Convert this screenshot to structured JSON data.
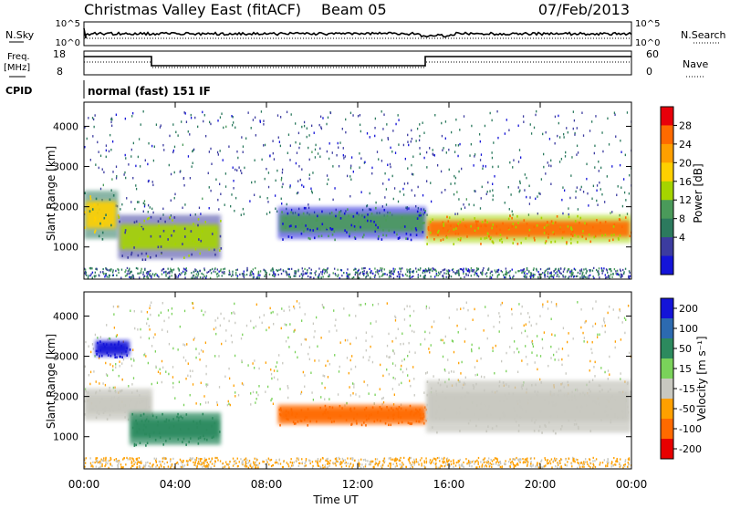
{
  "header": {
    "title": "Christmas Valley East (fitACF)",
    "beam": "Beam 05",
    "date": "07/Feb/2013"
  },
  "aux_panels": {
    "nsky_label": "N.Sky",
    "nsky_ticks": [
      "10^5",
      "10^0"
    ],
    "nsearch_label": "N.Search",
    "freq_label_line1": "Freq.",
    "freq_label_line2": "[MHz]",
    "freq_ticks": [
      "18",
      "8"
    ],
    "nave_label": "Nave",
    "nave_ticks": [
      "60",
      "0"
    ],
    "cpid_label": "CPID",
    "cpid_text": "normal (fast) 151 IF"
  },
  "chart_data": [
    {
      "type": "heatmap",
      "name": "power",
      "ylabel": "Slant Range [km]",
      "xlabel": "Time UT",
      "xlim": [
        0,
        24
      ],
      "ylim": [
        200,
        4600
      ],
      "x_ticks": [
        "00:00",
        "04:00",
        "08:00",
        "12:00",
        "16:00",
        "20:00",
        "00:00"
      ],
      "y_ticks": [
        1000,
        2000,
        3000,
        4000
      ],
      "colorbar": {
        "label": "Power [dB]",
        "ticks": [
          "28",
          "24",
          "20",
          "16",
          "12",
          "8",
          "4"
        ],
        "colors": [
          "#e8000a",
          "#ff6a00",
          "#ff9f00",
          "#ffd000",
          "#a5d400",
          "#4a9a5a",
          "#2c7a5e",
          "#3c3ca0",
          "#1414d8"
        ]
      },
      "features": [
        {
          "t_start": 0.0,
          "t_end": 1.5,
          "range_km": [
            1200,
            2400
          ],
          "level_db": 20
        },
        {
          "t_start": 1.5,
          "t_end": 6.0,
          "range_km": [
            700,
            1800
          ],
          "level_db": 16
        },
        {
          "t_start": 8.5,
          "t_end": 15.0,
          "range_km": [
            1200,
            2000
          ],
          "level_db": 12
        },
        {
          "t_start": 15.0,
          "t_end": 24.0,
          "range_km": [
            1100,
            1800
          ],
          "level_db": 28
        }
      ]
    },
    {
      "type": "heatmap",
      "name": "velocity",
      "ylabel": "Slant Range [km]",
      "xlabel": "Time UT",
      "xlim": [
        0,
        24
      ],
      "ylim": [
        200,
        4600
      ],
      "x_ticks": [
        "00:00",
        "04:00",
        "08:00",
        "12:00",
        "16:00",
        "20:00",
        "00:00"
      ],
      "y_ticks": [
        1000,
        2000,
        3000,
        4000
      ],
      "colorbar": {
        "label": "Velocity [m s⁻¹]",
        "ticks": [
          "200",
          "100",
          "50",
          "15",
          "-15",
          "-50",
          "-100",
          "-200"
        ],
        "colors": [
          "#1414d8",
          "#2c6ab0",
          "#2c8a5e",
          "#7ad25a",
          "#c8c8c0",
          "#ffa000",
          "#ff6a00",
          "#e80000"
        ]
      },
      "features": [
        {
          "t_start": 0.0,
          "t_end": 3.0,
          "range_km": [
            1400,
            2200
          ],
          "velocity": 0
        },
        {
          "t_start": 0.5,
          "t_end": 2.0,
          "range_km": [
            3000,
            3400
          ],
          "velocity": 200
        },
        {
          "t_start": 2.0,
          "t_end": 6.0,
          "range_km": [
            800,
            1600
          ],
          "velocity": 50
        },
        {
          "t_start": 8.5,
          "t_end": 15.0,
          "range_km": [
            1300,
            1800
          ],
          "velocity": -50
        },
        {
          "t_start": 15.0,
          "t_end": 24.0,
          "range_km": [
            1100,
            2400
          ],
          "velocity": 0
        }
      ]
    }
  ]
}
